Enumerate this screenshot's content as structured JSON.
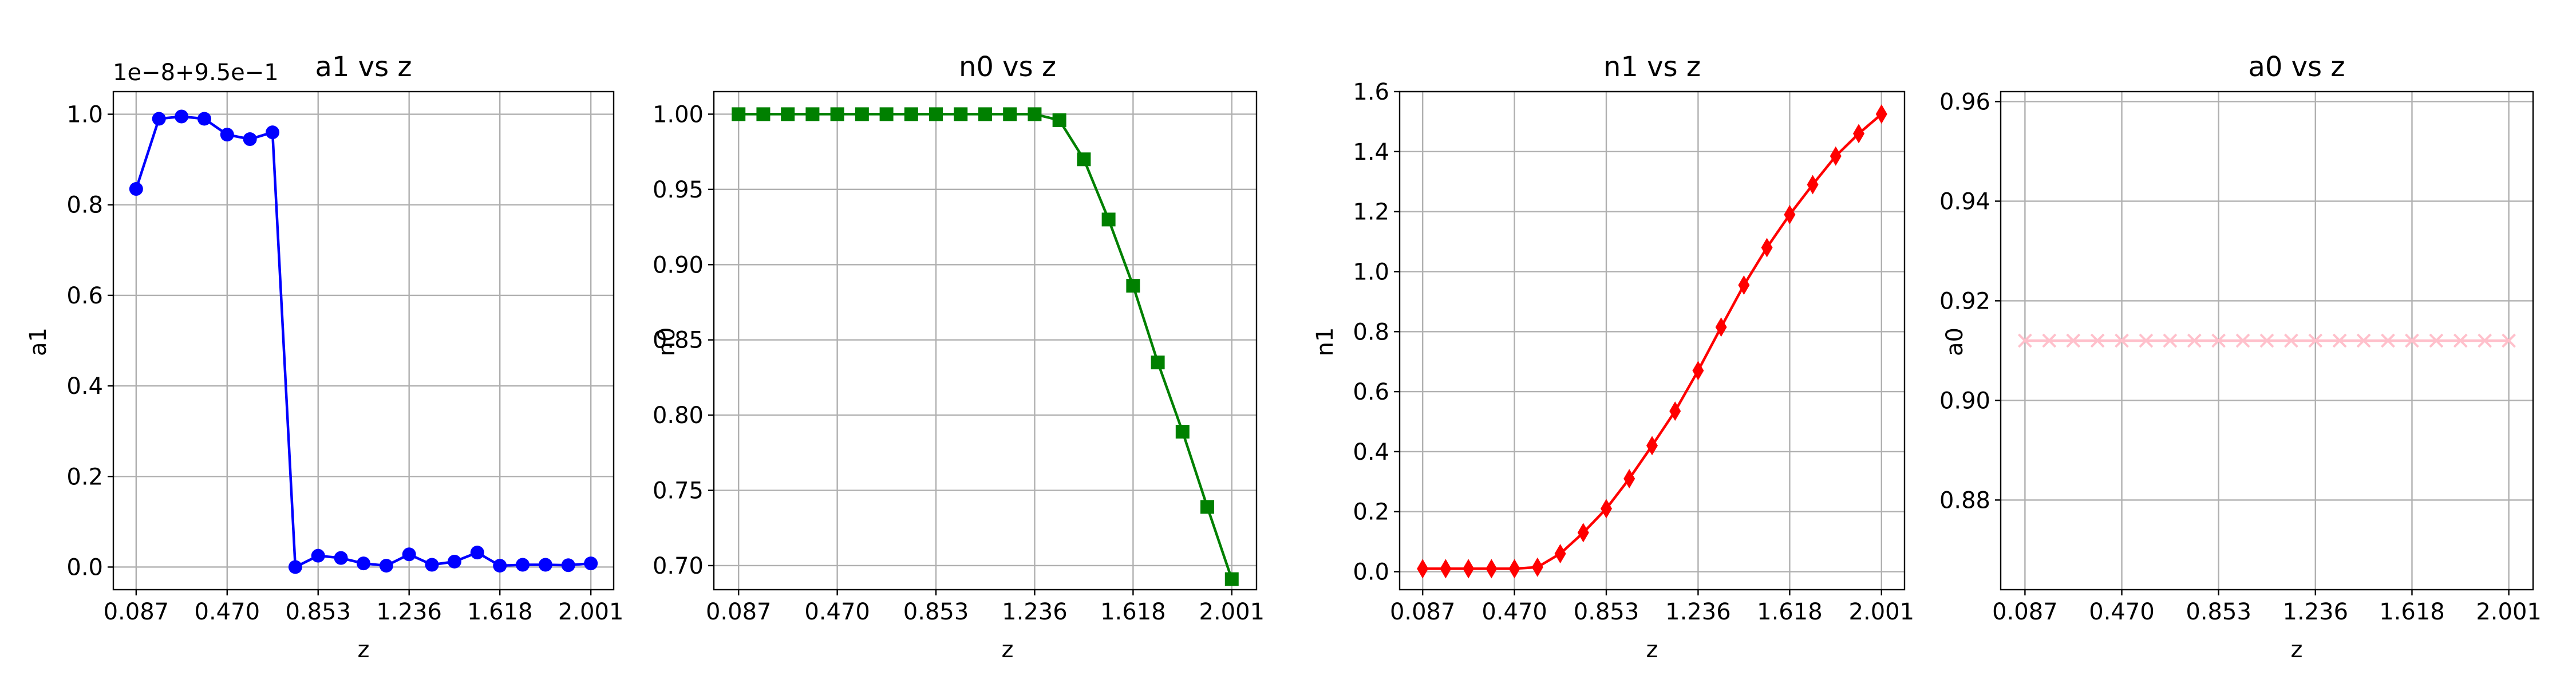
{
  "chart_data": [
    {
      "type": "line",
      "title": "a1 vs z",
      "xlabel": "z",
      "ylabel": "a1",
      "y_offset_text": "1e−8+9.5e−1",
      "x": [
        0.087,
        0.183,
        0.278,
        0.374,
        0.47,
        0.566,
        0.661,
        0.757,
        0.853,
        0.949,
        1.044,
        1.14,
        1.236,
        1.332,
        1.427,
        1.523,
        1.618,
        1.714,
        1.81,
        1.906,
        2.001
      ],
      "xticks": [
        "0.087",
        "0.470",
        "0.853",
        "1.236",
        "1.618",
        "2.001"
      ],
      "xlim": [
        -0.009,
        2.097
      ],
      "yticks": [
        "0.0",
        "0.2",
        "0.4",
        "0.6",
        "0.8",
        "1.0"
      ],
      "ylim": [
        -0.05,
        1.05
      ],
      "grid": true,
      "series": [
        {
          "values": [
            0.835,
            0.99,
            0.995,
            0.99,
            0.955,
            0.945,
            0.96,
            0.0,
            0.025,
            0.02,
            0.008,
            0.003,
            0.028,
            0.005,
            0.012,
            0.032,
            0.003,
            0.005,
            0.005,
            0.004,
            0.008
          ],
          "color": "#0000ff",
          "marker": "circle"
        }
      ]
    },
    {
      "type": "line",
      "title": "n0 vs z",
      "xlabel": "z",
      "ylabel": "n0",
      "x": [
        0.087,
        0.183,
        0.278,
        0.374,
        0.47,
        0.566,
        0.661,
        0.757,
        0.853,
        0.949,
        1.044,
        1.14,
        1.236,
        1.332,
        1.427,
        1.523,
        1.618,
        1.714,
        1.81,
        1.906,
        2.001
      ],
      "xticks": [
        "0.087",
        "0.470",
        "0.853",
        "1.236",
        "1.618",
        "2.001"
      ],
      "xlim": [
        -0.009,
        2.097
      ],
      "yticks": [
        "0.70",
        "0.75",
        "0.80",
        "0.85",
        "0.90",
        "0.95",
        "1.00"
      ],
      "ylim": [
        0.684,
        1.015
      ],
      "grid": true,
      "series": [
        {
          "values": [
            1.0,
            1.0,
            1.0,
            1.0,
            1.0,
            1.0,
            1.0,
            1.0,
            1.0,
            1.0,
            1.0,
            1.0,
            1.0,
            0.996,
            0.97,
            0.93,
            0.886,
            0.835,
            0.789,
            0.739,
            0.691
          ],
          "color": "#008000",
          "marker": "square"
        }
      ]
    },
    {
      "type": "line",
      "title": "n1 vs z",
      "xlabel": "z",
      "ylabel": "n1",
      "x": [
        0.087,
        0.183,
        0.278,
        0.374,
        0.47,
        0.566,
        0.661,
        0.757,
        0.853,
        0.949,
        1.044,
        1.14,
        1.236,
        1.332,
        1.427,
        1.523,
        1.618,
        1.714,
        1.81,
        1.906,
        2.001
      ],
      "xticks": [
        "0.087",
        "0.470",
        "0.853",
        "1.236",
        "1.618",
        "2.001"
      ],
      "xlim": [
        -0.009,
        2.097
      ],
      "yticks": [
        "0.0",
        "0.2",
        "0.4",
        "0.6",
        "0.8",
        "1.0",
        "1.2",
        "1.4",
        "1.6"
      ],
      "ylim": [
        -0.06,
        1.6
      ],
      "grid": true,
      "series": [
        {
          "values": [
            0.01,
            0.01,
            0.01,
            0.01,
            0.01,
            0.015,
            0.06,
            0.13,
            0.21,
            0.31,
            0.42,
            0.535,
            0.67,
            0.815,
            0.955,
            1.08,
            1.19,
            1.29,
            1.385,
            1.46,
            1.525
          ],
          "color": "#ff0000",
          "marker": "diamond"
        }
      ]
    },
    {
      "type": "line",
      "title": "a0 vs z",
      "xlabel": "z",
      "ylabel": "a0",
      "x": [
        0.087,
        0.183,
        0.278,
        0.374,
        0.47,
        0.566,
        0.661,
        0.757,
        0.853,
        0.949,
        1.044,
        1.14,
        1.236,
        1.332,
        1.427,
        1.523,
        1.618,
        1.714,
        1.81,
        1.906,
        2.001
      ],
      "xticks": [
        "0.087",
        "0.470",
        "0.853",
        "1.236",
        "1.618",
        "2.001"
      ],
      "xlim": [
        -0.009,
        2.097
      ],
      "yticks": [
        "0.88",
        "0.90",
        "0.92",
        "0.94",
        "0.96"
      ],
      "ylim": [
        0.862,
        0.962
      ],
      "grid": true,
      "series": [
        {
          "values": [
            0.912,
            0.912,
            0.912,
            0.912,
            0.912,
            0.912,
            0.912,
            0.912,
            0.912,
            0.912,
            0.912,
            0.912,
            0.912,
            0.912,
            0.912,
            0.912,
            0.912,
            0.912,
            0.912,
            0.912,
            0.912
          ],
          "color": "#ffc0cb",
          "marker": "x"
        }
      ]
    }
  ]
}
